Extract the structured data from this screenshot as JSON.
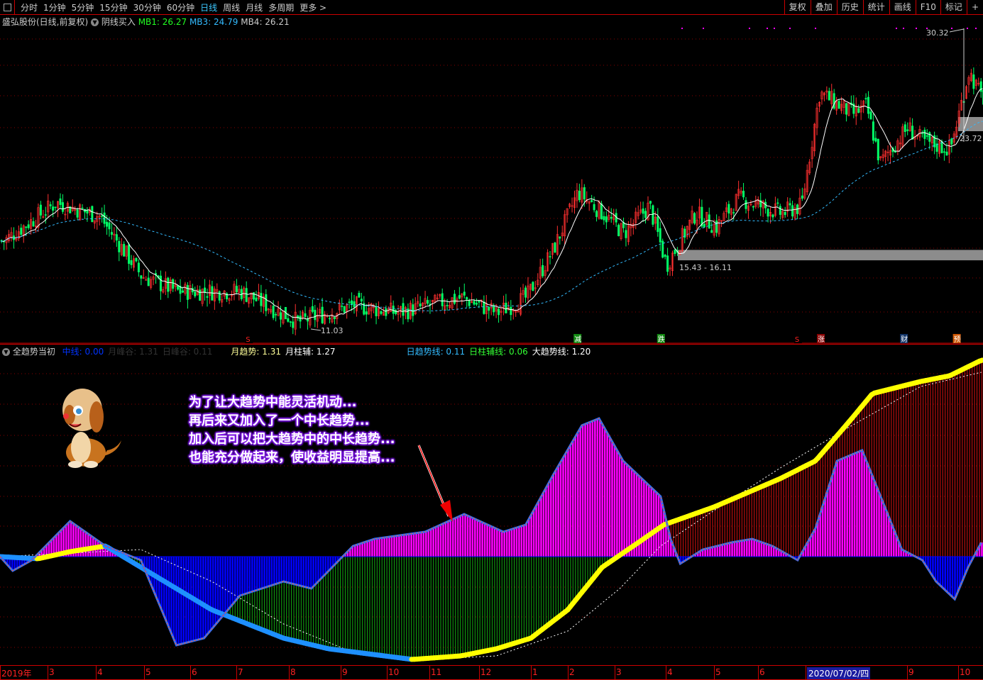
{
  "toolbar": {
    "periods": [
      "分时",
      "1分钟",
      "5分钟",
      "15分钟",
      "30分钟",
      "60分钟",
      "日线",
      "周线",
      "月线",
      "多周期",
      "更多 >"
    ],
    "active_period": "日线",
    "right_tools": [
      "复权",
      "叠加",
      "历史",
      "统计",
      "画线",
      "F10",
      "标记",
      "+"
    ]
  },
  "price_legend": {
    "title": "盛弘股份(日线,前复权)",
    "indicator": "阴线买入",
    "mb1": "MB1: 26.27",
    "mb3": "MB3: 24.79",
    "mb4": "MB4: 26.21"
  },
  "indicator_legend": {
    "name": "全趋势当初",
    "items": [
      {
        "text": "中线: 0.00",
        "color": "#0033ff"
      },
      {
        "text": "月峰谷: 1.31",
        "color": "#333333"
      },
      {
        "text": "日峰谷: 0.11",
        "color": "#333333"
      },
      {
        "text": "月趋势: 1.31",
        "color": "#ffff99"
      },
      {
        "text": "月柱辅: 1.27",
        "color": "#ffffff"
      },
      {
        "text": "日趋势线: 0.11",
        "color": "#33bbff"
      },
      {
        "text": "日柱辅线: 0.06",
        "color": "#33ff33"
      },
      {
        "text": "大趋势线: 1.20",
        "color": "#ffffff"
      }
    ]
  },
  "annotations": {
    "high_label": "30.32",
    "low_label": "11.03",
    "zone_label": "15.43 - 16.11",
    "right_label": "23.72",
    "note_lines": [
      "为了让大趋势中能灵活机动...",
      "再后来又加入了一个中长趋势...",
      "加入后可以把大趋势中的中长趋势...",
      "也能充分做起来，使收益明显提高..."
    ],
    "signals": [
      {
        "text": "S",
        "date": "2019-07-08",
        "color": "#ff2020",
        "bg": "#000000"
      },
      {
        "text": "减",
        "date": "2020-02-07",
        "color": "#ffffff",
        "bg": "#118811"
      },
      {
        "text": "跌",
        "date": "2020-03-28",
        "color": "#ffffff",
        "bg": "#118811"
      },
      {
        "text": "S",
        "date": "2020-06-26",
        "color": "#ff2020",
        "bg": "#000000"
      },
      {
        "text": "涨",
        "date": "2020-07-10",
        "color": "#ffffff",
        "bg": "#880000"
      },
      {
        "text": "财",
        "date": "2020-08-29",
        "color": "#ffffff",
        "bg": "#113366"
      },
      {
        "text": "预",
        "date": "2020-09-30",
        "color": "#ffffff",
        "bg": "#cc5500"
      }
    ]
  },
  "x_axis": {
    "labels": [
      "2019年",
      "3",
      "4",
      "5",
      "6",
      "7",
      "8",
      "9",
      "10",
      "11",
      "12",
      "1",
      "2",
      "3",
      "4",
      "5",
      "6",
      "2020/07/02/四",
      "9",
      "10"
    ],
    "highlight": "2020/07/02/四"
  },
  "colors": {
    "up": "#ff3030",
    "down": "#00ff66",
    "ma": "#ffffff",
    "ma_long": "#33bbff",
    "hist_pos": "#ff00ff",
    "hist_neg": "#0000ff",
    "trend_up": "#ffff00",
    "trend_down": "#1e90ff",
    "grid": "#880000",
    "zone": "#8c8c8c"
  },
  "chart_data": [
    {
      "type": "candlestick",
      "title": "盛弘股份(日线,前复权)",
      "y_range": [
        10.6,
        31.1
      ],
      "support_zone": [
        15.43,
        16.11
      ],
      "high": 30.32,
      "low": 11.03,
      "close_path": {
        "dates": [
          "2019-02-03",
          "2019-03-06",
          "2019-04-03",
          "2019-04-29",
          "2019-05-22",
          "2019-07-03",
          "2019-08-06",
          "2019-09-09",
          "2019-10-08",
          "2019-11-20",
          "2019-12-11",
          "2019-12-28",
          "2020-01-19",
          "2020-02-07",
          "2020-02-23",
          "2020-03-06",
          "2020-03-21",
          "2020-04-01",
          "2020-04-19",
          "2020-05-02",
          "2020-05-17",
          "2020-06-15",
          "2020-06-28",
          "2020-07-09",
          "2020-07-29",
          "2020-08-07",
          "2020-08-15",
          "2020-09-01",
          "2020-09-10",
          "2020-09-26",
          "2020-10-07",
          "2020-10-15"
        ],
        "values": [
          16.7,
          19.2,
          18.3,
          14.4,
          13.4,
          13.4,
          11.4,
          12.5,
          12.0,
          13.0,
          12.0,
          13.0,
          16.2,
          19.9,
          18.5,
          17.2,
          19.0,
          15.1,
          18.5,
          17.6,
          19.5,
          18.5,
          19.0,
          26.4,
          25.0,
          25.5,
          21.8,
          24.1,
          23.2,
          22.7,
          27.8,
          26.0
        ]
      }
    },
    {
      "type": "line",
      "title": "全趋势当初",
      "y_range": [
        -1.55,
        2.8
      ],
      "series": [
        {
          "name": "日趋势线",
          "dates": [
            "2019-02-01",
            "2019-02-09",
            "2019-02-21",
            "2019-03-15",
            "2019-04-07",
            "2019-04-29",
            "2019-05-22",
            "2019-06-10",
            "2019-07-03",
            "2019-07-28",
            "2019-08-14",
            "2019-09-09",
            "2019-09-23",
            "2019-10-28",
            "2019-11-22",
            "2019-12-15",
            "2019-12-28",
            "2020-01-19",
            "2020-02-10",
            "2020-02-21",
            "2020-03-06",
            "2020-03-28",
            "2020-04-04",
            "2020-04-10",
            "2020-04-24",
            "2020-05-13",
            "2020-05-27",
            "2020-06-10",
            "2020-06-26",
            "2020-07-07",
            "2020-07-20",
            "2020-08-05",
            "2020-08-19",
            "2020-08-28",
            "2020-09-10",
            "2020-09-18",
            "2020-09-29",
            "2020-10-07",
            "2020-10-15"
          ],
          "values": [
            0,
            -0.2,
            -0.05,
            0.5,
            0.15,
            -0.05,
            -1.25,
            -1.15,
            -0.55,
            -0.35,
            -0.45,
            0.15,
            0.25,
            0.35,
            0.6,
            0.35,
            0.45,
            1.15,
            1.85,
            1.95,
            1.35,
            0.85,
            0.25,
            -0.1,
            0.1,
            0.2,
            0.25,
            0.15,
            -0.05,
            0.4,
            1.35,
            1.5,
            0.65,
            0.1,
            -0.05,
            -0.35,
            -0.6,
            -0.15,
            0.2
          ]
        },
        {
          "name": "大趋势线",
          "dates": [
            "2019-02-01",
            "2019-02-25",
            "2019-03-15",
            "2019-04-07",
            "2019-04-29",
            "2019-06-15",
            "2019-07-28",
            "2019-08-24",
            "2019-10-19",
            "2019-11-20",
            "2019-12-11",
            "2020-01-01",
            "2020-02-01",
            "2020-02-23",
            "2020-03-15",
            "2020-03-30",
            "2020-05-01",
            "2020-06-15",
            "2020-07-07",
            "2020-07-29",
            "2020-08-11",
            "2020-09-09",
            "2020-09-26",
            "2020-10-15"
          ],
          "values": [
            0,
            -0.03,
            0.07,
            0.15,
            -0.15,
            -0.75,
            -1.15,
            -1.3,
            -1.45,
            -1.4,
            -1.3,
            -1.15,
            -0.75,
            -0.15,
            0.2,
            0.45,
            0.7,
            1.1,
            1.35,
            1.95,
            2.3,
            2.47,
            2.55,
            2.77
          ]
        },
        {
          "name": "月柱辅",
          "dates": [
            "2019-02-01",
            "2019-04-29",
            "2019-06-15",
            "2019-07-28",
            "2019-09-09",
            "2019-10-28",
            "2019-12-11",
            "2020-02-01",
            "2020-03-04",
            "2020-03-28",
            "2020-05-01",
            "2020-06-15",
            "2020-07-29",
            "2020-09-09",
            "2020-10-15"
          ],
          "values": [
            0,
            0.1,
            -0.35,
            -0.95,
            -1.35,
            -1.45,
            -1.4,
            -1.05,
            -0.45,
            0.15,
            0.65,
            1.25,
            1.85,
            2.4,
            2.6
          ]
        }
      ]
    }
  ]
}
